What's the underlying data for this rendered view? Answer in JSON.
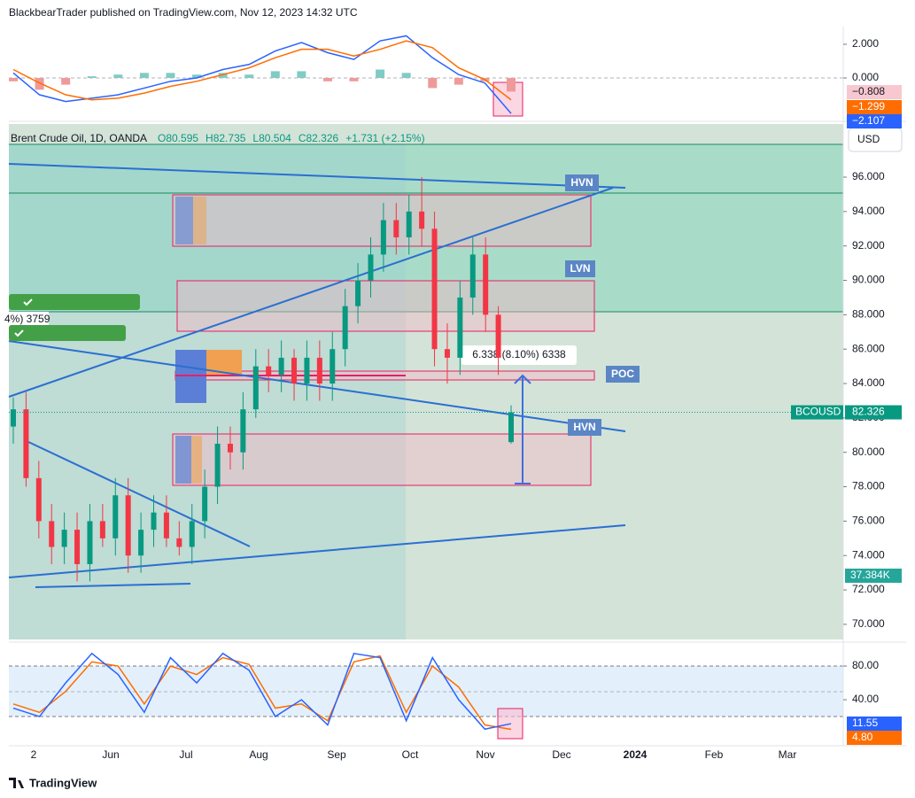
{
  "header": "BlackbearTrader published on TradingView.com, Nov 12, 2023 14:32 UTC",
  "footer": "TradingView",
  "time_axis": [
    "2",
    "Jun",
    "Jul",
    "Aug",
    "Sep",
    "Oct",
    "Nov",
    "Dec",
    "2024",
    "Feb",
    "Mar"
  ],
  "chart_data": [
    {
      "type": "macd",
      "ylim": [
        -2.47,
        3.05
      ],
      "yticks": [
        {
          "value": 2,
          "label": "2.000"
        },
        {
          "value": 0,
          "label": "0.000"
        }
      ],
      "series": [
        {
          "name": "MACD",
          "color": "#2962ff",
          "values": [
            0.3,
            -1.0,
            -1.4,
            -1.2,
            -1.0,
            -0.6,
            -0.2,
            0.0,
            0.5,
            0.8,
            1.6,
            2.1,
            1.5,
            1.1,
            2.2,
            2.5,
            1.2,
            0.2,
            -0.3,
            -2.107
          ],
          "last_label": "−2.107"
        },
        {
          "name": "Signal",
          "color": "#ff6d00",
          "values": [
            0.5,
            -0.3,
            -1.0,
            -1.3,
            -1.2,
            -0.9,
            -0.5,
            -0.2,
            0.2,
            0.6,
            1.2,
            1.7,
            1.7,
            1.3,
            1.7,
            2.2,
            1.8,
            0.6,
            -0.1,
            -1.299
          ],
          "last_label": "−1.299"
        },
        {
          "name": "Histogram",
          "color": "#ef9a9a",
          "values": [
            -0.2,
            -0.7,
            -0.4,
            0.1,
            0.2,
            0.3,
            0.3,
            0.2,
            0.3,
            0.2,
            0.4,
            0.4,
            -0.2,
            -0.2,
            0.5,
            0.3,
            -0.6,
            -0.4,
            -0.2,
            -0.808
          ],
          "last_label": "−0.808"
        }
      ]
    },
    {
      "type": "candlestick",
      "title": "Brent Crude Oil, 1D, OANDA",
      "legend_values": [
        "O80.595",
        "H82.735",
        "L80.504",
        "C82.326",
        "+1.731 (+2.15%)"
      ],
      "currency": "USD",
      "color_up": "#089981",
      "color_down": "#f23645",
      "ylim": [
        69.12,
        99.09
      ],
      "yticks": [
        {
          "value": 96,
          "label": "96.000"
        },
        {
          "value": 94,
          "label": "94.000"
        },
        {
          "value": 92,
          "label": "92.000"
        },
        {
          "value": 90,
          "label": "90.000"
        },
        {
          "value": 88,
          "label": "88.000"
        },
        {
          "value": 86,
          "label": "86.000"
        },
        {
          "value": 84,
          "label": "84.000"
        },
        {
          "value": 82,
          "label": "82.000"
        },
        {
          "value": 80,
          "label": "80.000"
        },
        {
          "value": 78,
          "label": "78.000"
        },
        {
          "value": 76,
          "label": "76.000"
        },
        {
          "value": 74,
          "label": "74.000"
        },
        {
          "value": 72,
          "label": "72.000"
        },
        {
          "value": 70,
          "label": "70.000"
        }
      ],
      "open": [
        81.5,
        82.5,
        78.5,
        76,
        74.5,
        75.5,
        73.5,
        76,
        75,
        77.5,
        74,
        75.5,
        76.5,
        75,
        74.5,
        76,
        78,
        80.5,
        80,
        82.5,
        85,
        84.5,
        85.5,
        84,
        85.5,
        84,
        86,
        88.5,
        90,
        91.5,
        93.5,
        92.5,
        94,
        93,
        86,
        85.5,
        89,
        91.5,
        88,
        80.595
      ],
      "high": [
        83.2,
        83.5,
        79.5,
        77,
        76.5,
        76.5,
        77,
        77,
        78.5,
        78.5,
        76.5,
        77.5,
        77.5,
        76,
        77,
        79,
        81.5,
        81.5,
        83.5,
        86,
        86,
        86.5,
        86,
        86.5,
        86.5,
        87,
        89.5,
        91,
        92.5,
        94.5,
        94.5,
        95,
        96,
        94,
        87.5,
        90,
        92.5,
        92.5,
        88.5,
        82.735
      ],
      "low": [
        80.5,
        78,
        75,
        73.5,
        73.5,
        72.5,
        72.5,
        74.5,
        74,
        73,
        73,
        74.5,
        74.5,
        74,
        73.5,
        75,
        77,
        79,
        79,
        82,
        83.5,
        83.5,
        83,
        83,
        83,
        83,
        85,
        87.5,
        89,
        90.5,
        91.5,
        91.5,
        92,
        85,
        84,
        84.5,
        88,
        87,
        84.5,
        80.504
      ],
      "close": [
        82.5,
        78.5,
        76,
        74.5,
        75.5,
        73.5,
        76,
        75,
        77.5,
        74,
        75.5,
        76.5,
        75,
        74.5,
        76,
        78,
        80.5,
        80,
        82.5,
        85,
        84.5,
        85.5,
        84,
        85.5,
        84,
        86,
        88.5,
        90,
        91.5,
        93.5,
        92.5,
        94,
        93,
        86,
        85.5,
        89,
        91.5,
        88,
        85.5,
        82.326
      ],
      "price_label": {
        "symbol": "BCOUSD",
        "value": 82.326
      },
      "volume_label": "37.384K",
      "measure_label": "6.338 (8.10%) 6338",
      "left_label": "4%) 3759",
      "zones": [
        "HVN",
        "LVN",
        "POC",
        "HVN"
      ]
    },
    {
      "type": "stochastic",
      "ylim": [
        -12.6,
        103.2
      ],
      "yticks": [
        {
          "value": 80,
          "label": "80.00"
        },
        {
          "value": 40,
          "label": "40.00"
        }
      ],
      "series": [
        {
          "name": "%K",
          "color": "#2962ff",
          "values": [
            30,
            20,
            60,
            95,
            70,
            25,
            90,
            60,
            95,
            75,
            20,
            40,
            10,
            95,
            90,
            15,
            90,
            40,
            5,
            11.55
          ],
          "last_label": "11.55"
        },
        {
          "name": "%D",
          "color": "#ff6d00",
          "values": [
            35,
            25,
            50,
            85,
            80,
            35,
            80,
            70,
            90,
            82,
            30,
            35,
            15,
            85,
            92,
            25,
            80,
            55,
            10,
            4.8
          ],
          "last_label": "4.80"
        }
      ]
    }
  ]
}
